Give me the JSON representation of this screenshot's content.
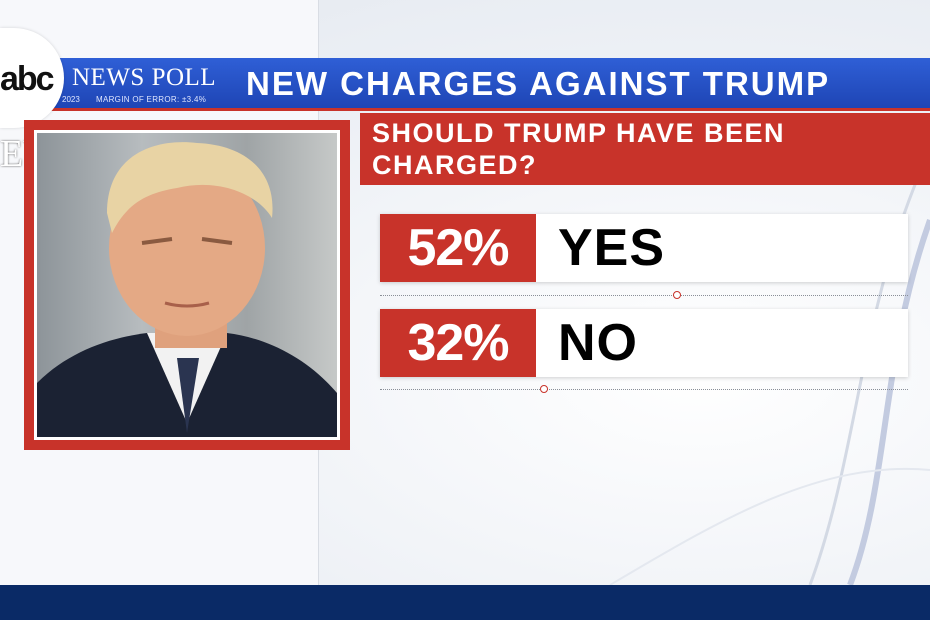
{
  "header": {
    "network_logo": "abc",
    "poll_label": "NEWS POLL",
    "poll_date": "2023",
    "margin_of_error": "MARGIN OF ERROR: ±3.4%",
    "headline": "NEW CHARGES AGAINST TRUMP",
    "side_text": "EWS"
  },
  "question": {
    "line1": "SHOULD TRUMP HAVE BEEN",
    "line2": "CHARGED?"
  },
  "results": [
    {
      "percent_label": "52%",
      "answer": "YES",
      "value": 52
    },
    {
      "percent_label": "32%",
      "answer": "NO",
      "value": 32
    }
  ],
  "colors": {
    "header_blue": "#2f5fd6",
    "accent_red": "#c8332a",
    "bottom_navy": "#0a2a66"
  },
  "icons": [
    "abc-logo-icon",
    "poll-marker-icon"
  ]
}
